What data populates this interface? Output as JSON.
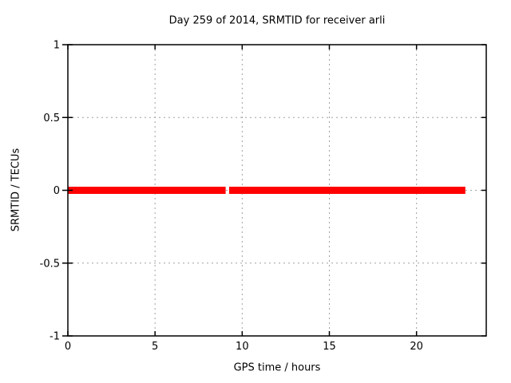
{
  "chart_data": {
    "type": "line",
    "title": "Day 259 of 2014, SRMTID for receiver arli",
    "xlabel": "GPS time / hours",
    "ylabel": "SRMTID / TECUs",
    "xlim": [
      0,
      24
    ],
    "ylim": [
      -1,
      1
    ],
    "xticks": [
      0,
      5,
      10,
      15,
      20
    ],
    "xtick_labels": [
      "0",
      "5",
      "10",
      "15",
      "20"
    ],
    "yticks": [
      -1,
      -0.5,
      0,
      0.5,
      1
    ],
    "ytick_labels": [
      "-1",
      "-0.5",
      "0",
      "0.5",
      "1"
    ],
    "grid": true,
    "legend": "none",
    "colors": {
      "axis": "#000000",
      "grid": "#a0a0a0",
      "background": "#ffffff",
      "data": "#ff0000"
    },
    "series": [
      {
        "name": "SRMTID",
        "color": "#ff0000",
        "line_width": 9,
        "segments": [
          {
            "x_start": 0.0,
            "x_end": 9.05,
            "y": 0
          },
          {
            "x_start": 9.25,
            "x_end": 22.8,
            "y": 0
          }
        ]
      }
    ]
  }
}
